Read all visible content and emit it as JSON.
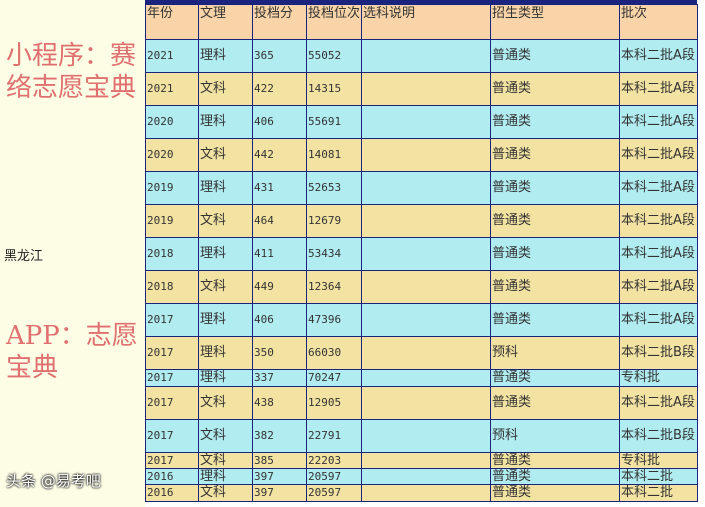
{
  "province": "黑龙江",
  "headers": [
    "年份",
    "文理",
    "投档分",
    "投档位次",
    "选科说明",
    "招生类型",
    "批次"
  ],
  "rows": [
    [
      "2021",
      "理科",
      "365",
      "55052",
      "",
      "普通类",
      "本科二批A段"
    ],
    [
      "2021",
      "文科",
      "422",
      "14315",
      "",
      "普通类",
      "本科二批A段"
    ],
    [
      "2020",
      "理科",
      "406",
      "55691",
      "",
      "普通类",
      "本科二批A段"
    ],
    [
      "2020",
      "文科",
      "442",
      "14081",
      "",
      "普通类",
      "本科二批A段"
    ],
    [
      "2019",
      "理科",
      "431",
      "52653",
      "",
      "普通类",
      "本科二批A段"
    ],
    [
      "2019",
      "文科",
      "464",
      "12679",
      "",
      "普通类",
      "本科二批A段"
    ],
    [
      "2018",
      "理科",
      "411",
      "53434",
      "",
      "普通类",
      "本科二批A段"
    ],
    [
      "2018",
      "文科",
      "449",
      "12364",
      "",
      "普通类",
      "本科二批A段"
    ],
    [
      "2017",
      "理科",
      "406",
      "47396",
      "",
      "普通类",
      "本科二批A段"
    ],
    [
      "2017",
      "理科",
      "350",
      "66030",
      "",
      "预科",
      "本科二批B段"
    ],
    [
      "2017",
      "理科",
      "337",
      "70247",
      "",
      "普通类",
      "专科批"
    ],
    [
      "2017",
      "文科",
      "438",
      "12905",
      "",
      "普通类",
      "本科二批A段"
    ],
    [
      "2017",
      "文科",
      "382",
      "22791",
      "",
      "预科",
      "本科二批B段"
    ],
    [
      "2017",
      "文科",
      "385",
      "22203",
      "",
      "普通类",
      "专科批"
    ],
    [
      "2016",
      "理科",
      "397",
      "20597",
      "",
      "普通类",
      "本科二批"
    ],
    [
      "2016",
      "文科",
      "397",
      "20597",
      "",
      "普通类",
      "本科二批"
    ]
  ],
  "watermarks": [
    "小程序：赛络志愿宝典",
    "APP：志愿宝典",
    "头条 @易考吧"
  ]
}
